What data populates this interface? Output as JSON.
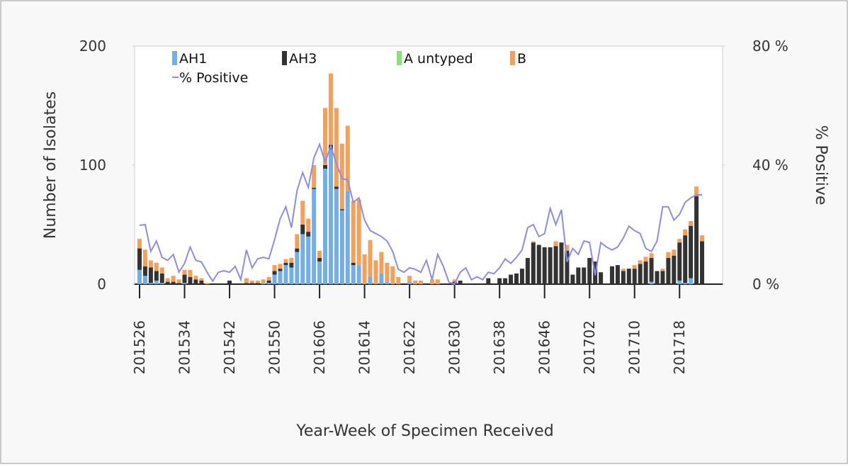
{
  "chart_data": {
    "type": "bar",
    "stacked": true,
    "x_label": "Year-Week of Specimen Received",
    "y_label": "Number of Isolates",
    "y2_label": "% Positive",
    "categories": [
      "201526",
      null,
      null,
      null,
      null,
      null,
      null,
      null,
      "201534",
      null,
      null,
      null,
      null,
      null,
      null,
      null,
      "201542",
      null,
      null,
      null,
      null,
      null,
      null,
      null,
      "201550",
      null,
      null,
      null,
      null,
      null,
      null,
      null,
      "201606",
      null,
      null,
      null,
      null,
      null,
      null,
      null,
      "201614",
      null,
      null,
      null,
      null,
      null,
      null,
      null,
      "201622",
      null,
      null,
      null,
      null,
      null,
      null,
      null,
      "201630",
      null,
      null,
      null,
      null,
      null,
      null,
      null,
      "201638",
      null,
      null,
      null,
      null,
      null,
      null,
      null,
      "201646",
      null,
      null,
      null,
      null,
      null,
      null,
      null,
      "201702",
      null,
      null,
      null,
      null,
      null,
      null,
      null,
      "201710",
      null,
      null,
      null,
      null,
      null,
      null,
      null,
      "201718",
      null,
      null,
      null,
      null
    ],
    "ylim": [
      0,
      200
    ],
    "yticks": [
      0,
      100,
      200
    ],
    "y2lim": [
      0,
      80
    ],
    "y2ticks": [
      {
        "value": 0,
        "label": "0 %"
      },
      {
        "value": 40,
        "label": "40 %"
      },
      {
        "value": 80,
        "label": "80 %"
      }
    ],
    "grid": false,
    "legend": "upper left",
    "series": [
      {
        "name": "AH1",
        "color": "#74aee6",
        "values": [
          12,
          7,
          1,
          3,
          1,
          0,
          0,
          0,
          1,
          0,
          0,
          0,
          0,
          0,
          0,
          0,
          0,
          0,
          0,
          0,
          0,
          0,
          1,
          1,
          8,
          11,
          16,
          14,
          27,
          42,
          40,
          80,
          19,
          97,
          113,
          80,
          62,
          78,
          16,
          16,
          0,
          6,
          0,
          9,
          2,
          0,
          0,
          0,
          2,
          0,
          0,
          0,
          0,
          0,
          0,
          0,
          0,
          0,
          0,
          0,
          0,
          0,
          0,
          0,
          0,
          0,
          0,
          0,
          0,
          0,
          0,
          0,
          0,
          0,
          0,
          0,
          0,
          0,
          0,
          0,
          0,
          0,
          0,
          0,
          0,
          0,
          0,
          0,
          0,
          0,
          0,
          2,
          0,
          0,
          0,
          0,
          3,
          1,
          5,
          0,
          0
        ]
      },
      {
        "name": "AH3",
        "color": "#333333",
        "values": [
          18,
          8,
          13,
          8,
          8,
          2,
          2,
          1,
          7,
          6,
          4,
          3,
          0,
          0,
          0,
          0,
          3,
          0,
          0,
          1,
          1,
          1,
          0,
          2,
          3,
          2,
          2,
          4,
          3,
          8,
          4,
          1,
          3,
          3,
          4,
          2,
          1,
          0,
          2,
          0,
          0,
          0,
          0,
          0,
          0,
          0,
          0,
          0,
          0,
          0,
          0,
          0,
          0,
          0,
          0,
          0,
          2,
          3,
          0,
          0,
          0,
          0,
          5,
          0,
          5,
          5,
          8,
          9,
          13,
          22,
          35,
          33,
          31,
          31,
          32,
          35,
          28,
          8,
          14,
          14,
          22,
          19,
          10,
          0,
          15,
          16,
          11,
          13,
          13,
          17,
          19,
          20,
          11,
          11,
          22,
          24,
          32,
          40,
          44,
          74,
          36
        ]
      },
      {
        "name": "A untyped",
        "color": "#88e07a",
        "values": [
          0,
          0,
          0,
          0,
          0,
          0,
          0,
          0,
          0,
          0,
          0,
          0,
          0,
          0,
          0,
          0,
          0,
          0,
          0,
          0,
          0,
          0,
          0,
          0,
          0,
          0,
          0,
          0,
          0,
          0,
          0,
          0,
          0,
          0,
          0,
          0,
          0,
          0,
          0,
          0,
          0,
          0,
          0,
          0,
          0,
          0,
          0,
          0,
          0,
          0,
          0,
          0,
          0,
          0,
          0,
          0,
          0,
          0,
          0,
          0,
          0,
          0,
          0,
          0,
          0,
          0,
          0,
          0,
          0,
          0,
          0,
          0,
          0,
          0,
          0,
          0,
          0,
          0,
          0,
          0,
          0,
          0,
          0,
          0,
          0,
          0,
          0,
          0,
          0,
          0,
          0,
          0,
          0,
          0,
          0,
          0,
          0,
          0,
          0,
          0,
          0
        ]
      },
      {
        "name": "B",
        "color": "#f5a05a",
        "values": [
          8,
          14,
          6,
          7,
          5,
          3,
          5,
          3,
          4,
          6,
          3,
          2,
          1,
          0,
          0,
          0,
          0,
          0,
          0,
          4,
          2,
          2,
          3,
          3,
          5,
          4,
          3,
          4,
          12,
          20,
          11,
          19,
          6,
          48,
          60,
          66,
          55,
          55,
          52,
          55,
          25,
          31,
          20,
          18,
          16,
          15,
          6,
          0,
          5,
          3,
          3,
          0,
          4,
          4,
          0,
          0,
          2,
          0,
          0,
          0,
          0,
          0,
          0,
          0,
          0,
          0,
          0,
          0,
          0,
          0,
          1,
          0,
          0,
          0,
          4,
          0,
          5,
          0,
          0,
          0,
          0,
          0,
          0,
          0,
          0,
          0,
          2,
          0,
          3,
          3,
          4,
          4,
          0,
          2,
          5,
          5,
          3,
          5,
          4,
          8,
          5
        ]
      },
      {
        "name": "% Positive",
        "type": "line",
        "axis": "y2",
        "color": "#8c8ce8",
        "values": [
          19.8,
          20,
          11,
          14.5,
          9,
          8,
          10,
          4,
          7,
          12.5,
          8,
          7.5,
          4,
          1,
          4,
          4.5,
          4,
          6,
          1.5,
          11.5,
          5.5,
          8.5,
          9,
          8.5,
          15,
          22,
          26,
          19,
          31.5,
          37.5,
          32.5,
          42.5,
          47,
          41,
          46.5,
          40.5,
          35.5,
          35,
          27.5,
          29,
          21.5,
          18,
          17,
          16,
          14.5,
          11,
          5,
          4,
          5.5,
          5,
          4,
          8,
          1.5,
          10,
          6,
          0.7,
          0,
          4,
          5.5,
          1.5,
          2.5,
          1.5,
          4,
          3.5,
          5.5,
          8.5,
          7,
          9,
          11.5,
          19,
          20,
          16,
          17,
          25.5,
          20,
          25,
          7.5,
          12,
          10,
          14.5,
          14,
          3,
          14,
          12.5,
          11.5,
          12.5,
          15.5,
          19.5,
          18,
          17,
          12,
          11,
          14.5,
          26,
          26,
          21.5,
          23.5,
          27.5,
          29,
          30,
          30
        ]
      }
    ]
  }
}
